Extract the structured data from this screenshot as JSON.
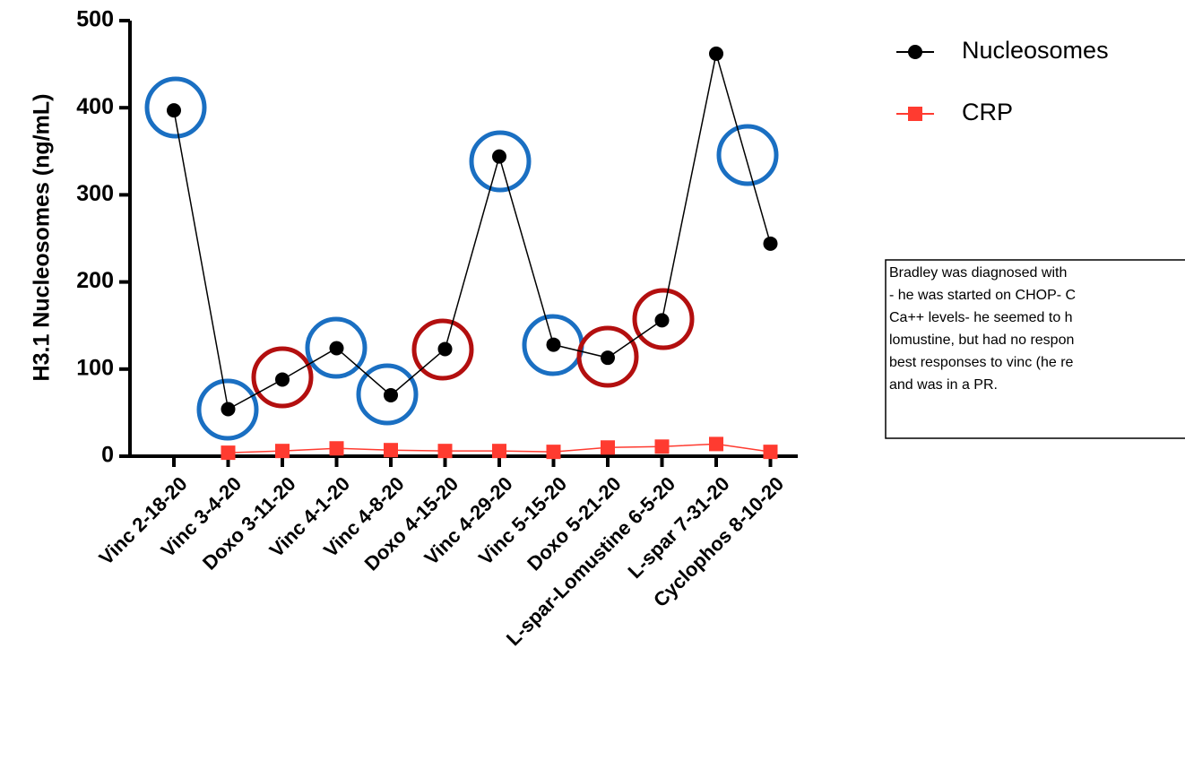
{
  "chart_data": {
    "type": "line",
    "y_label": "H3.1 Nucleosomes (ng/mL)",
    "categories": [
      "Vinc 2-18-20",
      "Vinc 3-4-20",
      "Doxo 3-11-20",
      "Vinc 4-1-20",
      "Vinc 4-8-20",
      "Doxo 4-15-20",
      "Vinc 4-29-20",
      "Vinc 5-15-20",
      "Doxo 5-21-20",
      "L-spar-Lomustine 6-5-20",
      "L-spar 7-31-20",
      "Cyclophos 8-10-20"
    ],
    "series": [
      {
        "name": "Nucleosomes",
        "color": "#000000",
        "marker": "circle",
        "values": [
          397,
          54,
          88,
          124,
          70,
          123,
          344,
          128,
          113,
          156,
          462,
          244
        ]
      },
      {
        "name": "CRP",
        "color": "#ff3b30",
        "marker": "square",
        "values": [
          null,
          4,
          6,
          9,
          7,
          6,
          6,
          5,
          10,
          11,
          14,
          5
        ]
      }
    ],
    "ylim": [
      0,
      500
    ],
    "yticks": [
      0,
      100,
      200,
      300,
      400,
      500
    ],
    "legend": "top-right",
    "annotation": [
      "Bradley was diagnosed with",
      "- he was started on CHOP- C",
      "Ca++ levels- he seemed to h",
      "lomustine, but had no respon",
      "best responses to vinc (he re",
      "and was in a PR."
    ]
  }
}
